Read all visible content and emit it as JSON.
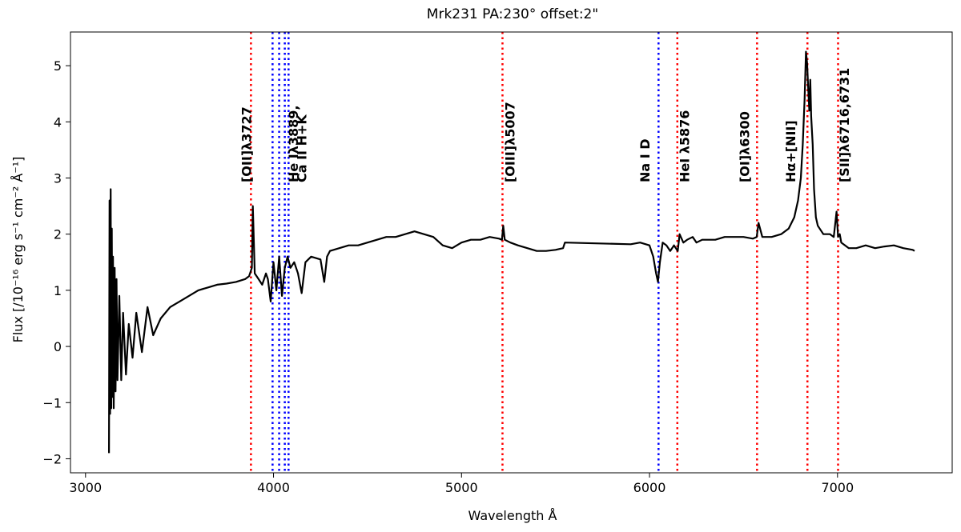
{
  "chart_data": {
    "type": "line",
    "title": "Mrk231 PA:230° offset:2\"",
    "xlabel": "Wavelength Å",
    "ylabel": "Flux  [/10⁻¹⁶ erg s⁻¹ cm⁻² Å⁻¹]",
    "xlim": [
      2920,
      7610
    ],
    "ylim": [
      -2.25,
      5.6
    ],
    "xticks": [
      3000,
      4000,
      5000,
      6000,
      7000
    ],
    "yticks": [
      -2,
      -1,
      0,
      1,
      2,
      3,
      4,
      5
    ],
    "grid": false,
    "series": [
      {
        "color": "#000000",
        "x": [
          3125,
          3128,
          3131,
          3134,
          3137,
          3140,
          3143,
          3146,
          3150,
          3155,
          3160,
          3165,
          3170,
          3180,
          3190,
          3200,
          3215,
          3230,
          3250,
          3270,
          3300,
          3330,
          3360,
          3400,
          3450,
          3500,
          3550,
          3600,
          3650,
          3700,
          3750,
          3800,
          3850,
          3870,
          3885,
          3890,
          3900,
          3920,
          3940,
          3960,
          3970,
          3985,
          4000,
          4015,
          4030,
          4045,
          4060,
          4075,
          4090,
          4110,
          4130,
          4150,
          4170,
          4200,
          4250,
          4270,
          4285,
          4300,
          4350,
          4400,
          4450,
          4500,
          4550,
          4600,
          4650,
          4700,
          4750,
          4800,
          4850,
          4900,
          4950,
          5000,
          5050,
          5100,
          5150,
          5200,
          5215,
          5222,
          5230,
          5260,
          5300,
          5350,
          5400,
          5450,
          5500,
          5540,
          5550,
          5900,
          5950,
          6000,
          6020,
          6035,
          6045,
          6055,
          6070,
          6090,
          6110,
          6130,
          6150,
          6160,
          6180,
          6200,
          6230,
          6250,
          6280,
          6300,
          6350,
          6400,
          6450,
          6500,
          6550,
          6570,
          6580,
          6600,
          6650,
          6700,
          6740,
          6770,
          6790,
          6805,
          6815,
          6825,
          6832,
          6838,
          6844,
          6850,
          6855,
          6860,
          6868,
          6875,
          6885,
          6895,
          6905,
          6915,
          6925,
          6940,
          6960,
          6980,
          6995,
          7003,
          7012,
          7020,
          7040,
          7060,
          7100,
          7150,
          7200,
          7250,
          7300,
          7350,
          7400,
          7410
        ],
        "y": [
          -1.9,
          2.6,
          -1.2,
          2.8,
          -1.1,
          2.1,
          -0.9,
          1.6,
          -1.1,
          1.4,
          -0.8,
          1.2,
          -0.6,
          0.9,
          -0.6,
          0.6,
          -0.5,
          0.4,
          -0.2,
          0.6,
          -0.1,
          0.7,
          0.2,
          0.5,
          0.7,
          0.8,
          0.9,
          1.0,
          1.05,
          1.1,
          1.12,
          1.15,
          1.2,
          1.25,
          1.4,
          2.5,
          1.3,
          1.2,
          1.1,
          1.3,
          1.2,
          0.8,
          1.5,
          1.0,
          1.6,
          0.9,
          1.4,
          1.6,
          1.4,
          1.5,
          1.3,
          0.95,
          1.5,
          1.6,
          1.55,
          1.15,
          1.6,
          1.7,
          1.75,
          1.8,
          1.8,
          1.85,
          1.9,
          1.95,
          1.95,
          2.0,
          2.05,
          2.0,
          1.95,
          1.8,
          1.75,
          1.85,
          1.9,
          1.9,
          1.95,
          1.92,
          1.9,
          2.15,
          1.9,
          1.85,
          1.8,
          1.75,
          1.7,
          1.7,
          1.72,
          1.75,
          1.85,
          1.82,
          1.85,
          1.8,
          1.6,
          1.3,
          1.15,
          1.5,
          1.85,
          1.8,
          1.7,
          1.8,
          1.7,
          2.0,
          1.85,
          1.9,
          1.95,
          1.85,
          1.9,
          1.9,
          1.9,
          1.95,
          1.95,
          1.95,
          1.92,
          1.95,
          2.2,
          1.95,
          1.95,
          2.0,
          2.1,
          2.3,
          2.6,
          3.0,
          3.6,
          4.4,
          5.25,
          5.05,
          4.6,
          4.2,
          4.75,
          4.1,
          3.6,
          2.8,
          2.3,
          2.15,
          2.1,
          2.05,
          2.0,
          2.0,
          2.0,
          1.95,
          2.4,
          1.95,
          2.0,
          1.85,
          1.8,
          1.75,
          1.75,
          1.8,
          1.75,
          1.78,
          1.8,
          1.75,
          1.72,
          1.7
        ]
      }
    ],
    "lines": [
      {
        "x": 3880,
        "color": "#ff0000",
        "label": "[OII]λ3727"
      },
      {
        "x": 3995,
        "color": "#0000ff",
        "label": ""
      },
      {
        "x": 4030,
        "color": "#0000ff",
        "label": ""
      },
      {
        "x": 4060,
        "color": "#0000ff",
        "label": ""
      },
      {
        "x": 4080,
        "color": "#0000ff",
        "label": ""
      },
      {
        "x": 5218,
        "color": "#ff0000",
        "label": "[OIII]λ5007"
      },
      {
        "x": 6048,
        "color": "#0000ff",
        "label": "Na I D"
      },
      {
        "x": 6148,
        "color": "#ff0000",
        "label": "HeI λ5876"
      },
      {
        "x": 6572,
        "color": "#ff0000",
        "label": "[OI]λ6300"
      },
      {
        "x": 6840,
        "color": "#ff0000",
        "label": "Hα+[NII]"
      },
      {
        "x": 7003,
        "color": "#ff0000",
        "label": "[SII]λ6716,6731"
      }
    ],
    "annotations": [
      {
        "text": "[OII]λ3727",
        "x": 3880
      },
      {
        "text": "He Iλ3889,",
        "x": 4130
      },
      {
        "text": "Ca II H+K",
        "x": 4175
      },
      {
        "text": "[OIII]λ5007",
        "x": 5282
      },
      {
        "text": "Na I D",
        "x": 6000
      },
      {
        "text": "HeI λ5876",
        "x": 6210
      },
      {
        "text": "[OI]λ6300",
        "x": 6530
      },
      {
        "text": "Hα+[NII]",
        "x": 6775
      },
      {
        "text": "[SII]λ6716,6731",
        "x": 7060
      }
    ]
  }
}
